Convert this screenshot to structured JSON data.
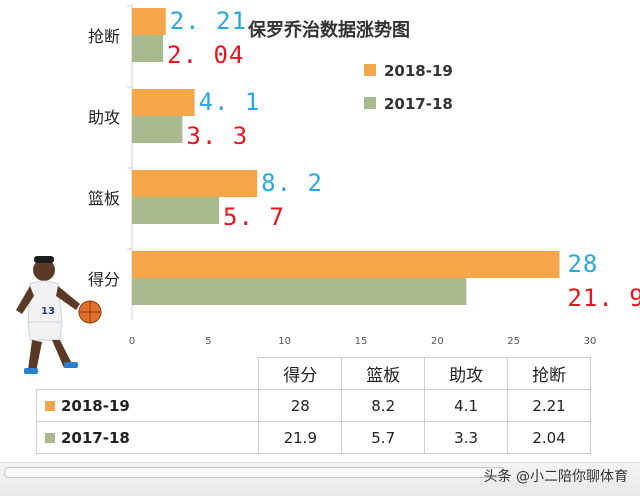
{
  "chart_data": {
    "type": "bar",
    "orientation": "horizontal",
    "title": "保罗乔治数据涨势图",
    "categories": [
      "抢断",
      "助攻",
      "篮板",
      "得分"
    ],
    "series": [
      {
        "name": "2018-19",
        "values": [
          2.21,
          4.1,
          8.2,
          28
        ],
        "labels": [
          "2. 21",
          "4. 1",
          "8. 2",
          "28"
        ],
        "color": "#f5a54a"
      },
      {
        "name": "2017-18",
        "values": [
          2.04,
          3.3,
          5.7,
          21.9
        ],
        "labels": [
          "2. 04",
          "3. 3",
          "5. 7",
          "21. 9"
        ],
        "color": "#a9ba8f"
      }
    ],
    "xlim": [
      0,
      30
    ],
    "xticks": [
      0,
      5,
      10,
      15,
      20,
      25,
      30
    ],
    "grid": false,
    "legend": "top-right",
    "label_colors": {
      "2018-19": "#29a8e0",
      "2017-18": "#e8141e"
    }
  },
  "table": {
    "headers": [
      "得分",
      "篮板",
      "助攻",
      "抢断"
    ],
    "rows": [
      {
        "series": "2018-19",
        "color": "#f5a54a",
        "cells": [
          "28",
          "8.2",
          "4.1",
          "2.21"
        ]
      },
      {
        "series": "2017-18",
        "color": "#a9ba8f",
        "cells": [
          "21.9",
          "5.7",
          "3.3",
          "2.04"
        ]
      }
    ]
  },
  "watermark": "头条 @小二陪你聊体育",
  "illustration": "basketball-player-icon"
}
